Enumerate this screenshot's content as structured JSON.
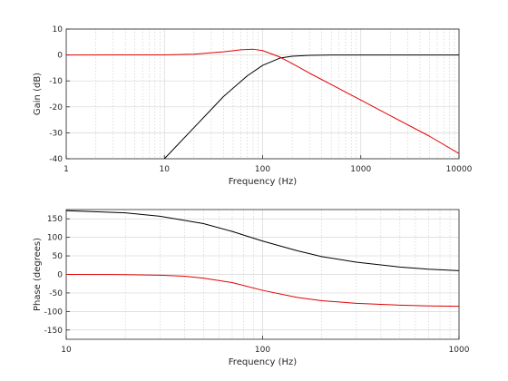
{
  "chart_data": [
    {
      "type": "line",
      "x_scale": "log",
      "xlim": [
        1,
        10000
      ],
      "ylim": [
        -40,
        10
      ],
      "xticks": [
        1,
        10,
        100,
        1000,
        10000
      ],
      "xtick_labels": [
        "1",
        "10",
        "100",
        "1000",
        "10000"
      ],
      "yticks": [
        -40,
        -30,
        -20,
        -10,
        0,
        10
      ],
      "ytick_labels": [
        "-40",
        "-30",
        "-20",
        "-10",
        "0",
        "10"
      ],
      "xlabel": "Frequency (Hz)",
      "ylabel": "Gain (dB)",
      "grid": true,
      "series": [
        {
          "color": "#000000",
          "x": [
            10,
            20,
            40,
            70,
            100,
            150,
            200,
            300,
            500,
            1000,
            3000,
            10000
          ],
          "y": [
            -40,
            -28,
            -16,
            -8,
            -4,
            -1.2,
            -0.5,
            -0.15,
            0,
            0,
            0,
            0
          ]
        },
        {
          "color": "#e00000",
          "x": [
            1,
            10,
            20,
            40,
            60,
            80,
            100,
            150,
            200,
            300,
            500,
            1000,
            2000,
            5000,
            10000
          ],
          "y": [
            0,
            0.05,
            0.3,
            1.2,
            2.0,
            2.2,
            1.7,
            -0.8,
            -3.3,
            -7,
            -11.4,
            -17.4,
            -23.4,
            -31.3,
            -38
          ]
        }
      ]
    },
    {
      "type": "line",
      "x_scale": "log",
      "xlim": [
        10,
        1000
      ],
      "ylim": [
        -175,
        175
      ],
      "xticks": [
        10,
        100,
        1000
      ],
      "xtick_labels": [
        "10",
        "100",
        "1000"
      ],
      "yticks": [
        -150,
        -100,
        -50,
        0,
        50,
        100,
        150
      ],
      "ytick_labels": [
        "-150",
        "-100",
        "-50",
        "0",
        "50",
        "100",
        "150"
      ],
      "xlabel": "Frequency (Hz)",
      "ylabel": "Phase (degrees)",
      "grid": true,
      "series": [
        {
          "color": "#000000",
          "x": [
            10,
            20,
            30,
            50,
            70,
            100,
            150,
            200,
            300,
            500,
            700,
            1000
          ],
          "y": [
            172,
            166,
            157,
            137,
            116,
            90,
            64,
            48,
            33,
            20,
            14,
            10
          ]
        },
        {
          "color": "#e00000",
          "x": [
            10,
            20,
            30,
            40,
            50,
            70,
            100,
            150,
            200,
            300,
            500,
            700,
            1000
          ],
          "y": [
            0,
            -0.5,
            -2,
            -5,
            -10,
            -22,
            -43,
            -62,
            -71,
            -78,
            -83,
            -85,
            -86
          ]
        }
      ]
    }
  ]
}
